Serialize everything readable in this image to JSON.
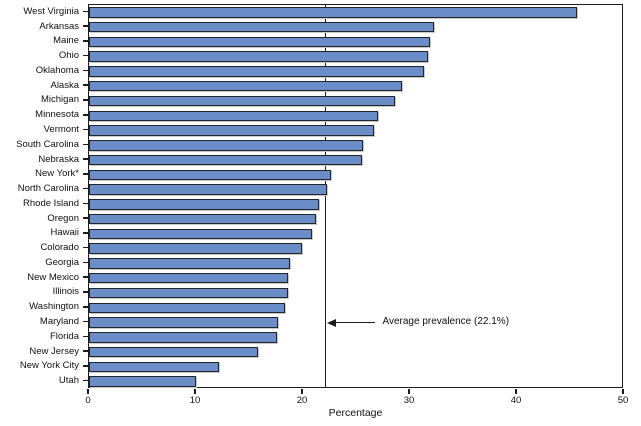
{
  "chart_data": {
    "type": "bar",
    "orientation": "horizontal",
    "xlabel": "Percentage",
    "xlim": [
      0,
      50
    ],
    "xticks": [
      0,
      10,
      20,
      30,
      40,
      50
    ],
    "grid": false,
    "legend": "none",
    "categories": [
      "West Virginia",
      "Arkansas",
      "Maine",
      "Ohio",
      "Oklahoma",
      "Alaska",
      "Michigan",
      "Minnesota",
      "Vermont",
      "South Carolina",
      "Nebraska",
      "New York*",
      "North Carolina",
      "Rhode Island",
      "Oregon",
      "Hawaii",
      "Colorado",
      "Georgia",
      "New Mexico",
      "Illinois",
      "Washington",
      "Maryland",
      "Florida",
      "New Jersey",
      "New York City",
      "Utah"
    ],
    "values": [
      45.8,
      32.4,
      32.0,
      31.8,
      31.4,
      29.4,
      28.7,
      27.1,
      26.7,
      25.7,
      25.6,
      22.7,
      22.3,
      21.6,
      21.3,
      20.9,
      20.0,
      18.9,
      18.7,
      18.7,
      18.4,
      17.7,
      17.6,
      15.9,
      12.2,
      10.0
    ],
    "average_line": {
      "value": 22.1,
      "label": "Average prevalence (22.1%)"
    },
    "colors": {
      "bar_fill": "#6a8cc7",
      "bar_border": "#23232b",
      "axis": "#1c1c1c"
    }
  }
}
